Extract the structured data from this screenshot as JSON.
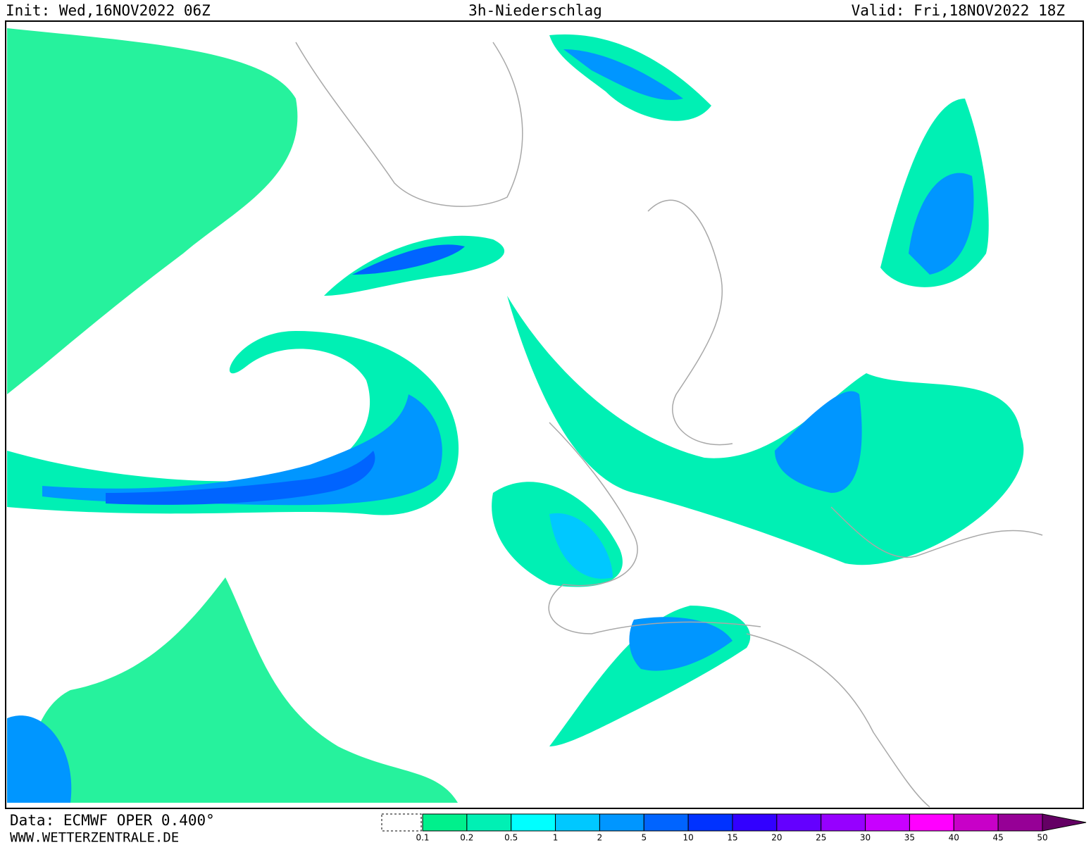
{
  "header": {
    "init": "Init: Wed,16NOV2022 06Z",
    "title": "3h-Niederschlag",
    "valid": "Valid: Fri,18NOV2022 18Z"
  },
  "footer": {
    "source": "Data: ECMWF OPER 0.400°",
    "website": "WWW.WETTERZENTRALE.DE"
  },
  "legend": {
    "ticks": [
      0.1,
      0.2,
      0.5,
      1,
      2,
      5,
      10,
      15,
      20,
      25,
      30,
      35,
      40,
      45,
      50
    ],
    "colors": [
      "#00f08c",
      "#00f0b4",
      "#00ffff",
      "#00c8ff",
      "#0096ff",
      "#0064ff",
      "#0032ff",
      "#3200ff",
      "#6400ff",
      "#9600ff",
      "#c800ff",
      "#ff00ff",
      "#c800c8",
      "#960096"
    ],
    "over_color": "#640064"
  }
}
